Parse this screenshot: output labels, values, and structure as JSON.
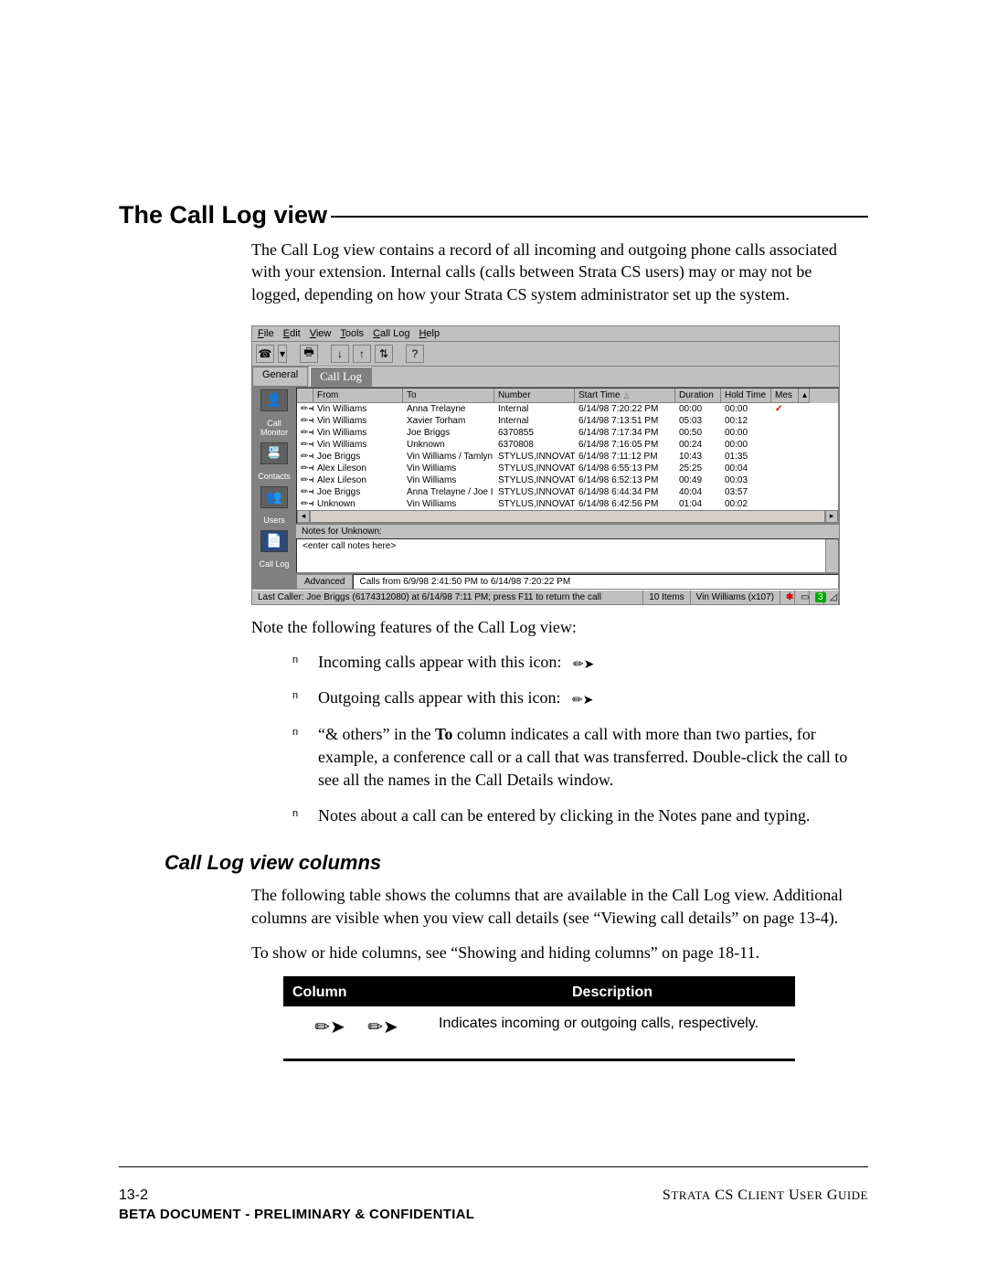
{
  "heading": "The Call Log view",
  "intro": "The Call Log view contains a record of all incoming and outgoing phone calls associated with your extension. Internal calls (calls between Strata CS users) may or may not be logged, depending on how your Strata CS system administrator set up the system.",
  "app": {
    "menus": [
      "File",
      "Edit",
      "View",
      "Tools",
      "Call Log",
      "Help"
    ],
    "toolbar_icons": [
      "☎",
      "▾",
      "",
      "🖨",
      "",
      "↓",
      "↑",
      "⇅",
      "",
      "?"
    ],
    "tabs": {
      "general": "General",
      "active": "Call Log"
    },
    "sidebar": [
      {
        "label": "",
        "icon": "👤"
      },
      {
        "label": "Call Monitor",
        "icon": "📞"
      },
      {
        "label": "",
        "icon": "📇"
      },
      {
        "label": "Contacts",
        "icon": ""
      },
      {
        "label": "",
        "icon": "👥"
      },
      {
        "label": "Users",
        "icon": ""
      },
      {
        "label": "",
        "icon": "📄"
      },
      {
        "label": "Call Log",
        "icon": ""
      }
    ],
    "columns": [
      "",
      "From",
      "To",
      "Number",
      "Start Time",
      "Duration",
      "Hold Time",
      "Mes",
      ""
    ],
    "rows": [
      {
        "dir": "in",
        "from": "Vin Williams",
        "to": "Anna Trelayne",
        "num": "Internal",
        "start": "6/14/98 7:20:22 PM",
        "dur": "00:00",
        "hold": "00:00",
        "mark": "✓"
      },
      {
        "dir": "in",
        "from": "Vin Williams",
        "to": "Xavier Torham",
        "num": "Internal",
        "start": "6/14/98 7:13:51 PM",
        "dur": "05:03",
        "hold": "00:12",
        "mark": ""
      },
      {
        "dir": "in",
        "from": "Vin Williams",
        "to": "Joe Briggs",
        "num": "6370855",
        "start": "6/14/98 7:17:34 PM",
        "dur": "00:50",
        "hold": "00:00",
        "mark": ""
      },
      {
        "dir": "in",
        "from": "Vin Williams",
        "to": "Unknown",
        "num": "6370808",
        "start": "6/14/98 7:16:05 PM",
        "dur": "00:24",
        "hold": "00:00",
        "mark": ""
      },
      {
        "dir": "out",
        "from": "Joe Briggs",
        "to": "Vin Williams / Tamlyn",
        "num": "STYLUS,INNOVATI -",
        "start": "6/14/98 7:11:12 PM",
        "dur": "10:43",
        "hold": "01:35",
        "mark": ""
      },
      {
        "dir": "out",
        "from": "Alex Lileson",
        "to": "Vin Williams",
        "num": "STYLUS,INNOVATI -",
        "start": "6/14/98 6:55:13 PM",
        "dur": "25:25",
        "hold": "00:04",
        "mark": ""
      },
      {
        "dir": "out",
        "from": "Alex Lileson",
        "to": "Vin Williams",
        "num": "STYLUS,INNOVATI -",
        "start": "6/14/98 6:52:13 PM",
        "dur": "00:49",
        "hold": "00:03",
        "mark": ""
      },
      {
        "dir": "out",
        "from": "Joe Briggs",
        "to": "Anna Trelayne / Joe I",
        "num": "STYLUS,INNOVATI -",
        "start": "6/14/98 6:44:34 PM",
        "dur": "40:04",
        "hold": "03:57",
        "mark": ""
      },
      {
        "dir": "out",
        "from": "Unknown",
        "to": "Vin Williams",
        "num": "STYLUS,INNOVATI -",
        "start": "6/14/98 6:42:56 PM",
        "dur": "01:04",
        "hold": "00:02",
        "mark": ""
      }
    ],
    "notes_header": "Notes for Unknown:",
    "notes_placeholder": "<enter call notes here>",
    "advanced_tab": "Advanced",
    "advanced_text": "Calls from 6/9/98 2:41:50 PM to 6/14/98 7:20:22 PM",
    "status": {
      "last": "Last Caller: Joe Briggs (6174312080) at 6/14/98 7:11 PM; press F11 to return the call",
      "items": "10 Items",
      "user": "Vin Williams (x107)",
      "badge": "3"
    }
  },
  "note_intro": "Note the following features of the Call Log view:",
  "bullets": {
    "b1": "Incoming calls appear with this icon:",
    "b2": "Outgoing calls appear with this icon:",
    "b3": "“& others” in the To column indicates a call with more than two parties, for example, a conference call or a call that was transferred. Double-click the call to see all the names in the Call Details window.",
    "b3_bold": "To",
    "b3_pre": "“& others” in the ",
    "b3_post": " column indicates a call with more than two parties, for example, a conference call or a call that was transferred. Double-click the call to see all the names in the Call Details window.",
    "b4": "Notes about a call can be entered by clicking in the Notes pane and typing."
  },
  "subheading": "Call Log view columns",
  "sub_p1": "The following table shows the columns that are available in the Call Log view. Additional columns are visible when you view call details (see “Viewing call details” on page 13-4).",
  "sub_p2": "To show or hide columns, see “Showing and hiding columns” on page 18-11.",
  "table": {
    "head_col": "Column",
    "head_desc": "Description",
    "row1_desc": "Indicates incoming or outgoing calls, respectively."
  },
  "footer": {
    "page": "13-2",
    "guide": "Strata CS Client User Guide",
    "conf": "BETA DOCUMENT - PRELIMINARY & CONFIDENTIAL"
  },
  "glyphs": {
    "in_icon": "➤",
    "out_icon": "➤",
    "check": "✓"
  }
}
